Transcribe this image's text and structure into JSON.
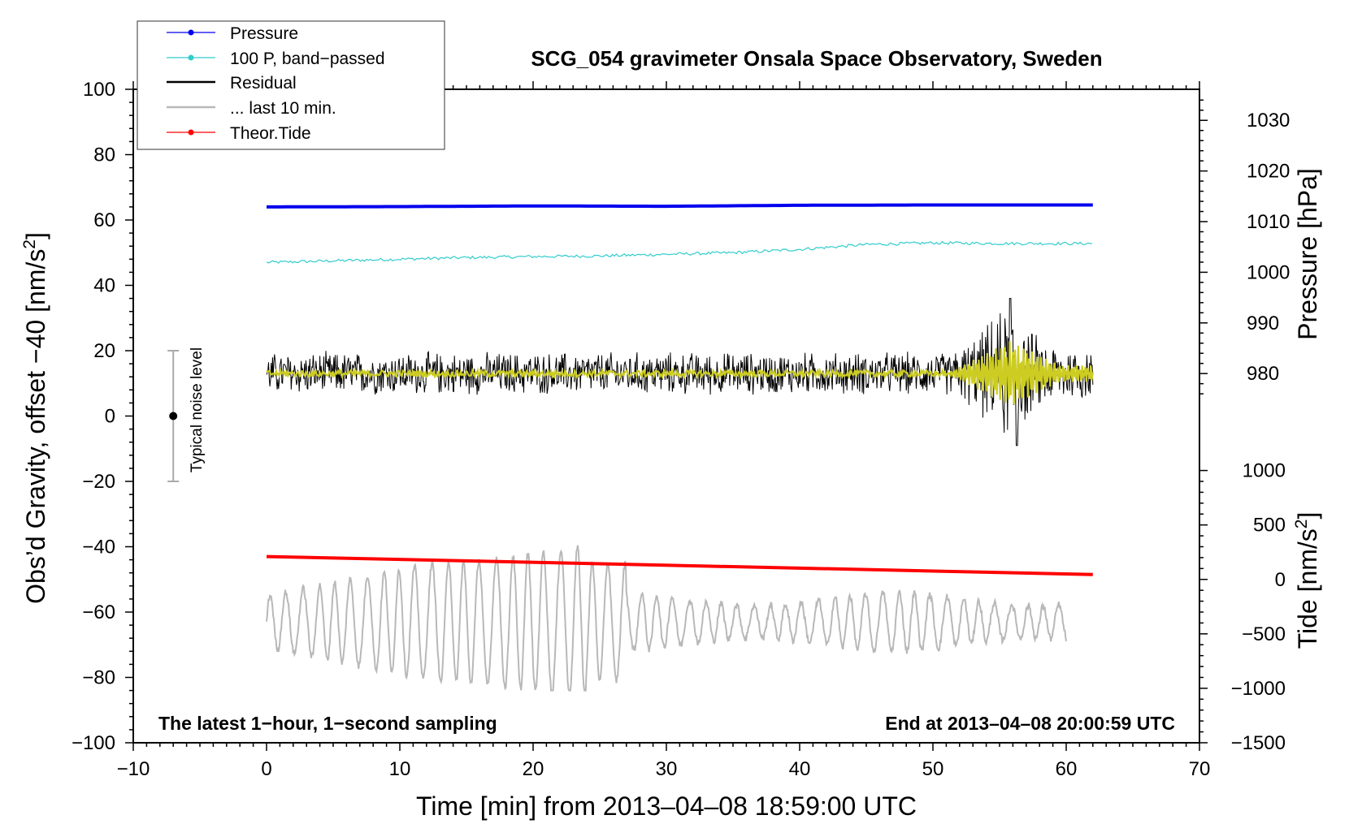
{
  "chart_data": {
    "type": "line",
    "title": "SCG_054 gravimeter Onsala Space Observatory, Sweden",
    "xlabel": "Time [min] from 2013–04–08 18:59:00 UTC",
    "ylabel_left": "Obs’d Gravity, offset –40 [nm/s²]",
    "ylabel_right_pressure": "Pressure [hPa]",
    "ylabel_right_tide": "Tide [nm/s²]",
    "xlim": [
      -10,
      70
    ],
    "ylim": [
      -100,
      100
    ],
    "x_ticks": [
      -10,
      0,
      10,
      20,
      30,
      40,
      50,
      60,
      70
    ],
    "x_tick_labels": [
      "−10",
      "0",
      "10",
      "20",
      "30",
      "40",
      "50",
      "60",
      "70"
    ],
    "y_ticks": [
      -100,
      -80,
      -60,
      -40,
      -20,
      0,
      20,
      40,
      60,
      80,
      100
    ],
    "y_tick_labels": [
      "−100",
      "−80",
      "−60",
      "−40",
      "−20",
      "0",
      "20",
      "40",
      "60",
      "80",
      "100"
    ],
    "pressure_axis": {
      "ticks": [
        980,
        990,
        1000,
        1010,
        1020,
        1030
      ],
      "tick_labels": [
        "980",
        "990",
        "1000",
        "1010",
        "1020",
        "1030"
      ],
      "offset_at": [
        980,
        13
      ],
      "scale": 1.55
    },
    "tide_axis": {
      "ticks": [
        -1500,
        -1000,
        -500,
        0,
        500,
        1000
      ],
      "tick_labels": [
        "−1500",
        "−1000",
        "−500",
        "0",
        "500",
        "1000"
      ],
      "offset_at": [
        0,
        -50
      ],
      "scale": 0.03333
    },
    "legend": {
      "position": "top-left",
      "entries": [
        "Pressure",
        "100 P, band−passed",
        "Residual",
        "... last 10 min.",
        "Theor.Tide"
      ]
    },
    "series": [
      {
        "name": "Pressure",
        "color": "#0000ee",
        "x": [
          0,
          10,
          20,
          30,
          40,
          50,
          62
        ],
        "values": [
          64.0,
          64.1,
          64.3,
          64.2,
          64.5,
          64.6,
          64.6
        ]
      },
      {
        "name": "100 P, band−passed",
        "color": "#33cccc",
        "x": [
          0,
          5,
          10,
          15,
          20,
          25,
          30,
          35,
          40,
          45,
          50,
          55,
          62
        ],
        "values": [
          47,
          47.5,
          48,
          48.5,
          48.8,
          49,
          49.5,
          50,
          51,
          52.5,
          53,
          52.8,
          52.8
        ]
      },
      {
        "name": "Residual",
        "color": "#000000",
        "x_range": [
          0,
          62
        ],
        "baseline": 13,
        "noise_amplitude": 6,
        "event": {
          "start": 51,
          "peak": 56,
          "end": 62,
          "max": 36,
          "min": -9
        }
      },
      {
        "name": "Residual (smoothed)",
        "color": "#cccc22",
        "x_range": [
          0,
          62
        ],
        "baseline": 13,
        "event_amplitude": 10
      },
      {
        "name": "... last 10 min.",
        "color": "#b8b8b8",
        "x_range": [
          0,
          60
        ],
        "center": -63,
        "min": -84,
        "max": -38
      },
      {
        "name": "Theor.Tide",
        "color": "#ff0000",
        "x": [
          0,
          62
        ],
        "values": [
          -43,
          -48.5
        ]
      }
    ],
    "noise_level": {
      "label": "Typical noise level",
      "x": -7,
      "center": 0,
      "low": -20,
      "high": 20
    }
  },
  "annotations": {
    "bottom_left": "The latest 1−hour, 1−second sampling",
    "bottom_right": "End at 2013–04–08 20:00:59 UTC"
  },
  "colors": {
    "pressure": "#0000ee",
    "band_passed": "#33cccc",
    "residual": "#000000",
    "smoothed": "#cccc22",
    "last_10_min": "#b8b8b8",
    "tide": "#ff0000"
  }
}
